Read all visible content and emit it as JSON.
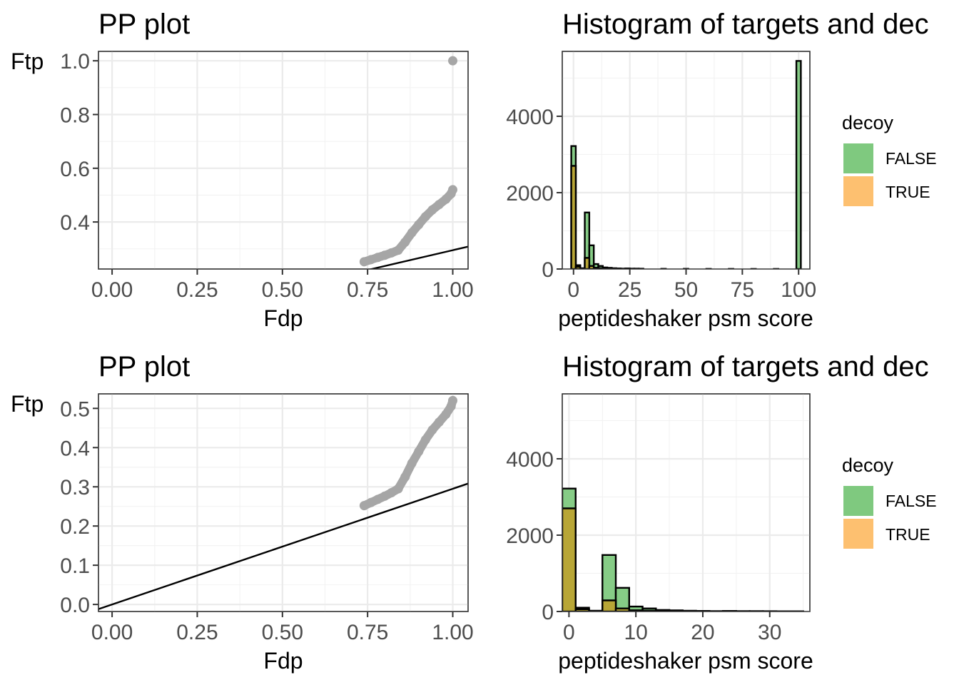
{
  "colors": {
    "points": "#a6a6a6",
    "line": "#000000",
    "false_fill": "#7fc97f",
    "true_fill": "#fdc070",
    "bar_stroke": "#000000"
  },
  "chart_data": [
    {
      "id": "pp_top",
      "type": "scatter",
      "title": "PP plot",
      "xlabel": "Fdp",
      "ylabel": "Ftp",
      "xlim": [
        -0.04,
        1.045
      ],
      "ylim": [
        0.225,
        1.035
      ],
      "xticks": [
        0,
        0.25,
        0.5,
        0.75,
        1
      ],
      "xtick_labels": [
        "0.00",
        "0.25",
        "0.50",
        "0.75",
        "1.00"
      ],
      "yticks": [
        0.4,
        0.6,
        0.8,
        1.0
      ],
      "ytick_labels": [
        "0.4",
        "0.6",
        "0.8",
        "1.0"
      ],
      "points": [
        [
          0.74,
          0.252
        ],
        [
          0.76,
          0.26
        ],
        [
          0.78,
          0.268
        ],
        [
          0.8,
          0.276
        ],
        [
          0.82,
          0.285
        ],
        [
          0.84,
          0.295
        ],
        [
          0.86,
          0.325
        ],
        [
          0.88,
          0.36
        ],
        [
          0.9,
          0.39
        ],
        [
          0.92,
          0.42
        ],
        [
          0.94,
          0.445
        ],
        [
          0.96,
          0.465
        ],
        [
          0.98,
          0.485
        ],
        [
          0.995,
          0.505
        ],
        [
          1.0,
          0.52
        ],
        [
          1.0,
          1.0
        ]
      ],
      "reference_line": {
        "intercept": 0,
        "slope": 0.295
      },
      "grid": true
    },
    {
      "id": "hist_top",
      "type": "bar",
      "title": "Histogram of targets and dec",
      "xlabel": "peptideshaker psm score",
      "xlim": [
        -5,
        105
      ],
      "ylim": [
        0,
        5700
      ],
      "xticks": [
        0,
        25,
        50,
        75,
        100
      ],
      "xtick_labels": [
        "0",
        "25",
        "50",
        "75",
        "100"
      ],
      "yticks": [
        0,
        2000,
        4000
      ],
      "ytick_labels": [
        "0",
        "2000",
        "4000"
      ],
      "bin_width": 2,
      "series": [
        {
          "name": "FALSE",
          "bins": [
            [
              0,
              3220
            ],
            [
              2,
              100
            ],
            [
              4,
              20
            ],
            [
              6,
              1480
            ],
            [
              8,
              620
            ],
            [
              10,
              130
            ],
            [
              12,
              80
            ],
            [
              14,
              40
            ],
            [
              16,
              30
            ],
            [
              18,
              20
            ],
            [
              20,
              15
            ],
            [
              22,
              10
            ],
            [
              24,
              15
            ],
            [
              26,
              10
            ],
            [
              28,
              10
            ],
            [
              30,
              8
            ],
            [
              40,
              5
            ],
            [
              50,
              5
            ],
            [
              60,
              3
            ],
            [
              70,
              3
            ],
            [
              80,
              2
            ],
            [
              90,
              2
            ],
            [
              100,
              5450
            ]
          ]
        },
        {
          "name": "TRUE",
          "bins": [
            [
              0,
              2700
            ],
            [
              2,
              60
            ],
            [
              4,
              10
            ],
            [
              6,
              290
            ],
            [
              8,
              80
            ],
            [
              10,
              30
            ],
            [
              12,
              20
            ],
            [
              14,
              15
            ],
            [
              16,
              10
            ],
            [
              18,
              8
            ],
            [
              20,
              5
            ],
            [
              22,
              5
            ],
            [
              24,
              5
            ],
            [
              26,
              3
            ],
            [
              28,
              3
            ],
            [
              30,
              2
            ]
          ]
        }
      ],
      "legend": {
        "title": "decoy",
        "entries": [
          "FALSE",
          "TRUE"
        ],
        "placement": "right"
      },
      "grid": true
    },
    {
      "id": "pp_bottom",
      "type": "scatter",
      "title": "PP plot",
      "xlabel": "Fdp",
      "ylabel": "Ftp",
      "xlim": [
        -0.04,
        1.045
      ],
      "ylim": [
        -0.018,
        0.537
      ],
      "xticks": [
        0,
        0.25,
        0.5,
        0.75,
        1
      ],
      "xtick_labels": [
        "0.00",
        "0.25",
        "0.50",
        "0.75",
        "1.00"
      ],
      "yticks": [
        0,
        0.1,
        0.2,
        0.3,
        0.4,
        0.5
      ],
      "ytick_labels": [
        "0.0",
        "0.1",
        "0.2",
        "0.3",
        "0.4",
        "0.5"
      ],
      "points": [
        [
          0.74,
          0.252
        ],
        [
          0.76,
          0.26
        ],
        [
          0.78,
          0.268
        ],
        [
          0.8,
          0.276
        ],
        [
          0.82,
          0.285
        ],
        [
          0.84,
          0.295
        ],
        [
          0.86,
          0.325
        ],
        [
          0.88,
          0.36
        ],
        [
          0.9,
          0.39
        ],
        [
          0.92,
          0.42
        ],
        [
          0.94,
          0.445
        ],
        [
          0.96,
          0.465
        ],
        [
          0.98,
          0.485
        ],
        [
          0.995,
          0.505
        ],
        [
          1.0,
          0.52
        ]
      ],
      "reference_line": {
        "intercept": 0,
        "slope": 0.295
      },
      "grid": true
    },
    {
      "id": "hist_bottom",
      "type": "bar",
      "title": "Histogram of targets and dec",
      "xlabel": "peptideshaker psm score",
      "xlim": [
        -1,
        36
      ],
      "ylim": [
        0,
        5700
      ],
      "xticks": [
        0,
        10,
        20,
        30
      ],
      "xtick_labels": [
        "0",
        "10",
        "20",
        "30"
      ],
      "yticks": [
        0,
        2000,
        4000
      ],
      "ytick_labels": [
        "0",
        "2000",
        "4000"
      ],
      "bin_width": 2,
      "series": [
        {
          "name": "FALSE",
          "bins": [
            [
              0,
              3220
            ],
            [
              2,
              100
            ],
            [
              4,
              20
            ],
            [
              6,
              1480
            ],
            [
              8,
              620
            ],
            [
              10,
              130
            ],
            [
              12,
              80
            ],
            [
              14,
              40
            ],
            [
              16,
              30
            ],
            [
              18,
              20
            ],
            [
              20,
              15
            ],
            [
              22,
              10
            ],
            [
              24,
              15
            ],
            [
              26,
              10
            ],
            [
              28,
              10
            ],
            [
              30,
              8
            ],
            [
              32,
              5
            ],
            [
              34,
              5
            ]
          ]
        },
        {
          "name": "TRUE",
          "bins": [
            [
              0,
              2700
            ],
            [
              2,
              60
            ],
            [
              4,
              10
            ],
            [
              6,
              290
            ],
            [
              8,
              80
            ],
            [
              10,
              30
            ],
            [
              12,
              20
            ],
            [
              14,
              15
            ],
            [
              16,
              10
            ],
            [
              18,
              8
            ],
            [
              20,
              5
            ],
            [
              22,
              5
            ],
            [
              24,
              5
            ],
            [
              26,
              3
            ],
            [
              28,
              3
            ],
            [
              30,
              2
            ],
            [
              32,
              2
            ],
            [
              34,
              2
            ]
          ]
        }
      ],
      "legend": {
        "title": "decoy",
        "entries": [
          "FALSE",
          "TRUE"
        ],
        "placement": "right"
      },
      "grid": true
    }
  ]
}
